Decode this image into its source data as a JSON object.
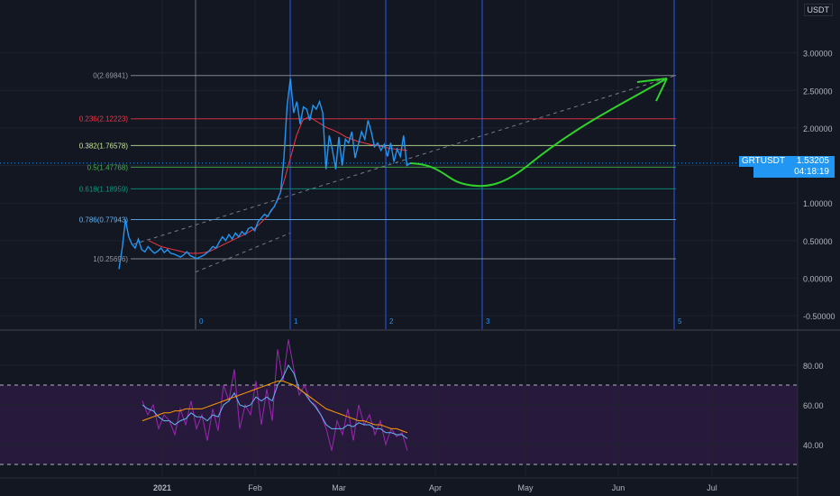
{
  "chart_data": [
    {
      "type": "line",
      "symbol": "GRTUSDT",
      "quote_currency": "USDT",
      "current_price": "1.53205",
      "countdown": "04:18:19",
      "y_axis": {
        "ticks": [
          "3.00000",
          "2.50000",
          "2.00000",
          "1.50000",
          "1.00000",
          "0.50000",
          "0.00000",
          "-0.50000"
        ],
        "ylim": [
          -0.6,
          3.5
        ]
      },
      "x_axis": {
        "ticks": [
          "2021",
          "Feb",
          "Mar",
          "Apr",
          "May",
          "Jun",
          "Jul"
        ]
      },
      "fib_levels": [
        {
          "ratio": "0",
          "price": "2.69841",
          "label": "0(2.69841)",
          "value": 2.69841,
          "color": "#9598a1"
        },
        {
          "ratio": "0.236",
          "price": "2.12223",
          "label": "0.236(2.12223)",
          "value": 2.12223,
          "color": "#f23645"
        },
        {
          "ratio": "0.382",
          "price": "1.76578",
          "label": "0.382(1.76578)",
          "value": 1.76578,
          "color": "#c9e89b"
        },
        {
          "ratio": "0.5",
          "price": "1.47768",
          "label": "0.5(1.47768)",
          "value": 1.47768,
          "color": "#4caf50"
        },
        {
          "ratio": "0.618",
          "price": "1.18959",
          "label": "0.618(1.18959)",
          "value": 1.18959,
          "color": "#089981"
        },
        {
          "ratio": "0.786",
          "price": "0.77943",
          "label": "0.786(0.77943)",
          "value": 0.77943,
          "color": "#64b5f6"
        },
        {
          "ratio": "1",
          "price": "0.25696",
          "label": "1(0.25696)",
          "value": 0.25696,
          "color": "#9598a1"
        }
      ],
      "fib_time_zones": [
        "0",
        "1",
        "2",
        "3",
        "5"
      ],
      "price_series": {
        "name": "GRTUSDT",
        "color": "#2196f3",
        "values": [
          0.12,
          0.4,
          0.78,
          0.55,
          0.45,
          0.4,
          0.52,
          0.38,
          0.35,
          0.42,
          0.37,
          0.33,
          0.36,
          0.4,
          0.34,
          0.38,
          0.33,
          0.32,
          0.3,
          0.28,
          0.31,
          0.35,
          0.3,
          0.28,
          0.26,
          0.28,
          0.3,
          0.33,
          0.37,
          0.42,
          0.4,
          0.48,
          0.55,
          0.5,
          0.58,
          0.52,
          0.6,
          0.55,
          0.62,
          0.58,
          0.66,
          0.68,
          0.63,
          0.75,
          0.8,
          0.85,
          0.82,
          0.9,
          0.95,
          1.05,
          1.15,
          1.6,
          2.3,
          2.66,
          2.2,
          2.35,
          2.05,
          2.28,
          2.25,
          2.1,
          2.3,
          2.25,
          2.35,
          2.2,
          1.45,
          1.9,
          1.7,
          1.45,
          1.88,
          1.5,
          1.85,
          1.8,
          1.95,
          1.6,
          1.78,
          1.95,
          1.85,
          2.1,
          1.95,
          1.75,
          1.8,
          1.7,
          1.78,
          1.62,
          1.8,
          1.55,
          1.72,
          1.62,
          1.9,
          1.5,
          1.53
        ]
      },
      "ma_series": {
        "color": "#f23645",
        "values": [
          0.5,
          0.46,
          0.42,
          0.4,
          0.38,
          0.36,
          0.34,
          0.33,
          0.33,
          0.34,
          0.36,
          0.4,
          0.44,
          0.48,
          0.52,
          0.56,
          0.6,
          0.65,
          0.72,
          0.8,
          0.9,
          1.05,
          1.3,
          1.6,
          1.9,
          2.1,
          2.15,
          2.1,
          2.05,
          2.0,
          1.97,
          1.93,
          1.88,
          1.85,
          1.82,
          1.8,
          1.78,
          1.77,
          1.75,
          1.73,
          1.72,
          1.71,
          1.7
        ]
      }
    },
    {
      "type": "line",
      "panel": "oscillator",
      "y_axis": {
        "ticks": [
          "80.00",
          "60.00",
          "40.00"
        ],
        "ylim": [
          30,
          95
        ]
      },
      "band": {
        "upper": 70,
        "lower": 30
      },
      "series": [
        {
          "color": "#9c27b0",
          "values": [
            62,
            55,
            60,
            48,
            55,
            52,
            45,
            58,
            50,
            62,
            48,
            55,
            42,
            58,
            47,
            70,
            62,
            78,
            48,
            60,
            55,
            72,
            50,
            68,
            52,
            88,
            72,
            93,
            78,
            65,
            70,
            62,
            60,
            55,
            48,
            37,
            52,
            45,
            58,
            42,
            60,
            50,
            55,
            45,
            52,
            40,
            48,
            44,
            46,
            37
          ]
        },
        {
          "color": "#64b5f6",
          "values": [
            60,
            58,
            57,
            54,
            52,
            52,
            50,
            52,
            53,
            56,
            54,
            54,
            52,
            55,
            54,
            60,
            62,
            66,
            60,
            59,
            60,
            64,
            62,
            64,
            62,
            70,
            74,
            80,
            76,
            68,
            66,
            62,
            59,
            55,
            50,
            48,
            48,
            48,
            50,
            49,
            51,
            50,
            50,
            48,
            48,
            46,
            46,
            45,
            45,
            43
          ]
        },
        {
          "color": "#ff9800",
          "values": [
            52,
            53,
            54,
            55,
            56,
            56,
            57,
            57,
            58,
            58,
            58,
            58,
            59,
            60,
            61,
            62,
            63,
            64,
            65,
            66,
            67,
            68,
            69,
            70,
            71,
            72,
            72,
            71,
            70,
            68,
            66,
            64,
            62,
            60,
            58,
            57,
            56,
            55,
            54,
            53,
            52,
            52,
            51,
            50,
            50,
            49,
            48,
            48,
            47,
            46
          ]
        }
      ]
    }
  ]
}
